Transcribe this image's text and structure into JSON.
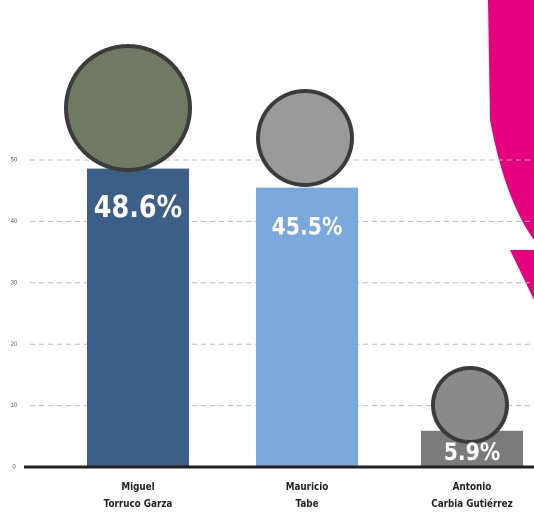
{
  "chart_data": {
    "type": "bar",
    "categories": [
      "Miguel\nTorruco Garza",
      "Mauricio\nTabe",
      "Antonio\nCarbia Gutiérrez"
    ],
    "values": [
      48.6,
      45.5,
      5.9
    ],
    "value_labels": [
      "48.6%",
      "45.5%",
      "5.9%"
    ],
    "colors": [
      "#3b5f87",
      "#7ba8dc",
      "#7b7b7b"
    ],
    "ylim": [
      0,
      50
    ],
    "yticks": [
      0,
      10,
      20,
      30,
      40,
      50
    ],
    "grid": true
  }
}
